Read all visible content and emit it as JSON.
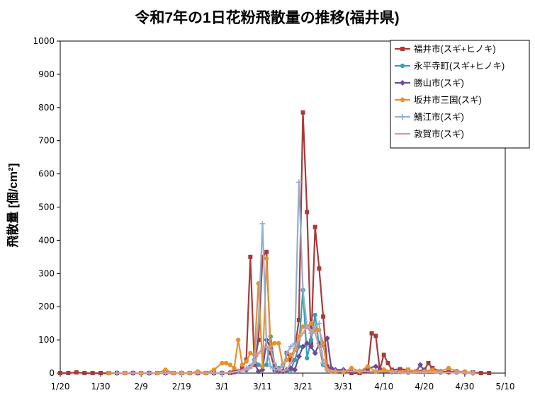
{
  "chart_data": {
    "type": "line",
    "title": "令和7年の1日花粉飛散量の推移(福井県)",
    "ylabel": "飛散量 [個/cm²]",
    "xlabel": "",
    "ylim": [
      0,
      1000
    ],
    "yticks": [
      0,
      100,
      200,
      300,
      400,
      500,
      600,
      700,
      800,
      900,
      1000
    ],
    "x_start": "1/20",
    "x_range_days": [
      0,
      110
    ],
    "xticks": [
      {
        "day": 0,
        "label": "1/20"
      },
      {
        "day": 10,
        "label": "1/30"
      },
      {
        "day": 20,
        "label": "2/9"
      },
      {
        "day": 30,
        "label": "2/19"
      },
      {
        "day": 40,
        "label": "3/1"
      },
      {
        "day": 50,
        "label": "3/11"
      },
      {
        "day": 60,
        "label": "3/21"
      },
      {
        "day": 70,
        "label": "3/31"
      },
      {
        "day": 80,
        "label": "4/10"
      },
      {
        "day": 90,
        "label": "4/20"
      },
      {
        "day": 100,
        "label": "4/30"
      },
      {
        "day": 110,
        "label": "5/10"
      }
    ],
    "grid": "horizontal",
    "legend_position": "top-right",
    "series": [
      {
        "name": "福井市(スギ+ヒノキ)",
        "color": "#a83a3a",
        "marker": "square",
        "x": [
          0,
          2,
          4,
          6,
          8,
          10,
          12,
          14,
          16,
          18,
          20,
          22,
          24,
          26,
          28,
          30,
          32,
          34,
          36,
          38,
          40,
          42,
          43,
          44,
          45,
          46,
          47,
          48,
          49,
          50,
          51,
          52,
          53,
          54,
          55,
          56,
          57,
          58,
          59,
          60,
          61,
          62,
          63,
          64,
          65,
          66,
          67,
          68,
          70,
          72,
          74,
          76,
          77,
          78,
          79,
          80,
          81,
          82,
          84,
          86,
          88,
          90,
          91,
          92,
          94,
          96,
          98,
          100,
          102,
          104,
          106
        ],
        "values": [
          0,
          0,
          2,
          0,
          0,
          0,
          0,
          0,
          0,
          0,
          0,
          0,
          0,
          0,
          0,
          0,
          0,
          0,
          0,
          0,
          0,
          0,
          3,
          5,
          15,
          40,
          350,
          25,
          100,
          350,
          365,
          60,
          10,
          5,
          5,
          60,
          40,
          70,
          160,
          785,
          485,
          90,
          440,
          315,
          170,
          20,
          10,
          5,
          3,
          0,
          0,
          5,
          120,
          112,
          10,
          55,
          30,
          10,
          12,
          10,
          5,
          10,
          30,
          15,
          5,
          3,
          5,
          3,
          2,
          0,
          0
        ]
      },
      {
        "name": "永平寺町(スギ+ヒノキ)",
        "color": "#3aa0b0",
        "marker": "circle",
        "x": [
          12,
          16,
          20,
          24,
          28,
          32,
          36,
          38,
          40,
          42,
          44,
          46,
          47,
          48,
          49,
          50,
          51,
          52,
          53,
          54,
          55,
          56,
          57,
          58,
          59,
          60,
          61,
          62,
          63,
          64,
          65,
          66,
          68,
          70,
          74,
          78,
          82,
          86,
          90,
          94,
          98,
          102
        ],
        "values": [
          0,
          0,
          0,
          0,
          0,
          0,
          0,
          0,
          0,
          2,
          5,
          10,
          20,
          40,
          25,
          20,
          25,
          110,
          25,
          15,
          5,
          5,
          10,
          40,
          80,
          250,
          45,
          100,
          175,
          80,
          25,
          10,
          8,
          5,
          5,
          5,
          3,
          2,
          3,
          2,
          2,
          0
        ]
      },
      {
        "name": "勝山市(スギ)",
        "color": "#6b4a9a",
        "marker": "diamond",
        "x": [
          14,
          18,
          22,
          26,
          30,
          34,
          38,
          40,
          42,
          44,
          46,
          47,
          48,
          49,
          50,
          51,
          52,
          53,
          54,
          55,
          56,
          57,
          58,
          59,
          60,
          61,
          62,
          63,
          64,
          65,
          66,
          67,
          68,
          70,
          72,
          74,
          76,
          78,
          80,
          82,
          84,
          86,
          88,
          89,
          90,
          92,
          94,
          96,
          98,
          100,
          102
        ],
        "values": [
          0,
          0,
          0,
          0,
          0,
          0,
          0,
          0,
          2,
          5,
          10,
          20,
          30,
          5,
          10,
          100,
          75,
          10,
          5,
          5,
          10,
          15,
          10,
          50,
          80,
          90,
          80,
          60,
          90,
          85,
          105,
          15,
          10,
          10,
          5,
          5,
          15,
          20,
          10,
          5,
          5,
          3,
          5,
          25,
          5,
          10,
          5,
          3,
          5,
          2,
          0
        ]
      },
      {
        "name": "坂井市三国(スギ)",
        "color": "#e8902a",
        "marker": "circle",
        "x": [
          12,
          16,
          20,
          24,
          26,
          28,
          30,
          32,
          34,
          36,
          38,
          40,
          41,
          42,
          43,
          44,
          45,
          46,
          47,
          48,
          49,
          50,
          51,
          52,
          53,
          54,
          55,
          56,
          57,
          58,
          59,
          60,
          61,
          62,
          63,
          64,
          65,
          66,
          67,
          68,
          70,
          72,
          74,
          76,
          78,
          80,
          82,
          84,
          86,
          88,
          90,
          92,
          94,
          96,
          98,
          100,
          102
        ],
        "values": [
          0,
          0,
          0,
          0,
          10,
          0,
          0,
          0,
          5,
          0,
          10,
          30,
          30,
          25,
          15,
          100,
          25,
          35,
          60,
          55,
          270,
          20,
          345,
          80,
          90,
          90,
          25,
          40,
          55,
          70,
          110,
          140,
          140,
          150,
          130,
          130,
          90,
          10,
          5,
          5,
          3,
          15,
          5,
          20,
          5,
          10,
          5,
          3,
          10,
          5,
          5,
          10,
          5,
          15,
          5,
          5,
          0
        ]
      },
      {
        "name": "鯖江市(スギ)",
        "color": "#94aed2",
        "marker": "plus",
        "x": [
          14,
          18,
          22,
          26,
          30,
          34,
          38,
          40,
          42,
          44,
          46,
          47,
          48,
          49,
          50,
          51,
          52,
          53,
          54,
          55,
          56,
          57,
          58,
          59,
          60,
          61,
          62,
          63,
          64,
          65,
          66,
          68,
          70,
          74,
          78,
          82,
          86,
          90,
          94,
          98,
          102
        ],
        "values": [
          0,
          0,
          0,
          0,
          0,
          0,
          0,
          0,
          2,
          5,
          15,
          20,
          40,
          150,
          450,
          80,
          20,
          10,
          10,
          20,
          60,
          80,
          90,
          575,
          250,
          140,
          120,
          140,
          150,
          30,
          10,
          5,
          5,
          5,
          5,
          3,
          2,
          3,
          2,
          2,
          0
        ]
      },
      {
        "name": "敦賀市(スギ)",
        "color": "#d89a9a",
        "marker": "line",
        "x": [
          14,
          18,
          22,
          26,
          30,
          34,
          38,
          40,
          42,
          44,
          46,
          47,
          48,
          49,
          50,
          51,
          52,
          53,
          54,
          55,
          56,
          57,
          58,
          59,
          60,
          61,
          62,
          63,
          64,
          65,
          66,
          68,
          70,
          74,
          78,
          82,
          86,
          90,
          94,
          98,
          102
        ],
        "values": [
          0,
          0,
          0,
          0,
          0,
          0,
          0,
          0,
          2,
          5,
          10,
          15,
          30,
          60,
          75,
          80,
          70,
          30,
          10,
          5,
          10,
          30,
          70,
          100,
          120,
          140,
          130,
          120,
          80,
          40,
          10,
          5,
          5,
          5,
          5,
          3,
          2,
          3,
          2,
          2,
          0
        ]
      }
    ]
  }
}
